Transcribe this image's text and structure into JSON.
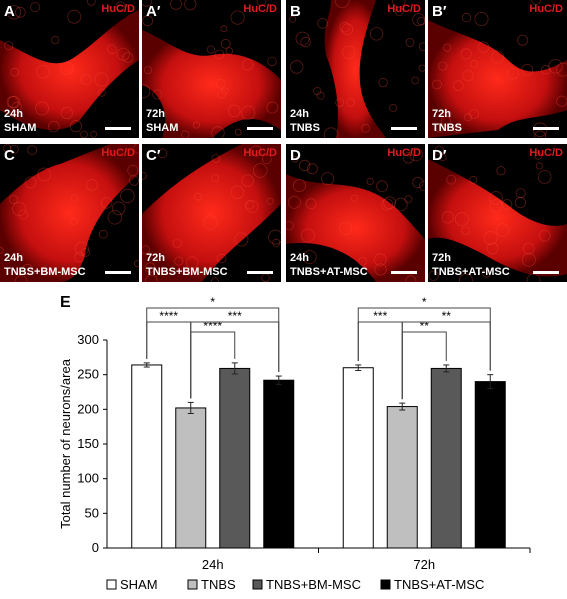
{
  "panels": [
    {
      "label": "A",
      "stain": "HuC/D",
      "time": "24h",
      "condition": "SHAM"
    },
    {
      "label": "A′",
      "stain": "HuC/D",
      "time": "72h",
      "condition": "SHAM"
    },
    {
      "label": "B",
      "stain": "HuC/D",
      "time": "24h",
      "condition": "TNBS"
    },
    {
      "label": "B′",
      "stain": "HuC/D",
      "time": "72h",
      "condition": "TNBS"
    },
    {
      "label": "C",
      "stain": "HuC/D",
      "time": "24h",
      "condition": "TNBS+BM-MSC"
    },
    {
      "label": "C′",
      "stain": "HuC/D",
      "time": "72h",
      "condition": "TNBS+BM-MSC"
    },
    {
      "label": "D",
      "stain": "HuC/D",
      "time": "24h",
      "condition": "TNBS+AT-MSC"
    },
    {
      "label": "D′",
      "stain": "HuC/D",
      "time": "72h",
      "condition": "TNBS+AT-MSC"
    }
  ],
  "colors": {
    "stain_red": "#e11b1b",
    "series": [
      "#ffffff",
      "#bfbfbf",
      "#595959",
      "#000000"
    ]
  },
  "chart_data": {
    "panel_label": "E",
    "type": "bar",
    "categories": [
      "24h",
      "72h"
    ],
    "ylabel": "Total number of neurons/area",
    "xlabel": "",
    "ylim": [
      0,
      300
    ],
    "yticks": [
      0,
      50,
      100,
      150,
      200,
      250,
      300
    ],
    "grid": false,
    "legend_position": "bottom",
    "series": [
      {
        "name": "SHAM",
        "values": [
          264,
          260
        ],
        "errors": [
          3,
          4
        ]
      },
      {
        "name": "TNBS",
        "values": [
          202,
          204
        ],
        "errors": [
          8,
          5
        ]
      },
      {
        "name": "TNBS+BM-MSC",
        "values": [
          259,
          259
        ],
        "errors": [
          8,
          5
        ]
      },
      {
        "name": "TNBS+AT-MSC",
        "values": [
          242,
          240
        ],
        "errors": [
          6,
          10
        ]
      }
    ],
    "significance": [
      {
        "group": "24h",
        "from": "SHAM",
        "to": "TNBS",
        "label": "****",
        "level": 1
      },
      {
        "group": "24h",
        "from": "TNBS",
        "to": "TNBS+BM-MSC",
        "label": "****",
        "level": 2
      },
      {
        "group": "24h",
        "from": "TNBS",
        "to": "TNBS+AT-MSC",
        "label": "***",
        "level": 3
      },
      {
        "group": "24h",
        "from": "SHAM",
        "to": "TNBS+AT-MSC",
        "label": "*",
        "level": 4
      },
      {
        "group": "72h",
        "from": "SHAM",
        "to": "TNBS",
        "label": "***",
        "level": 1
      },
      {
        "group": "72h",
        "from": "TNBS",
        "to": "TNBS+BM-MSC",
        "label": "**",
        "level": 2
      },
      {
        "group": "72h",
        "from": "TNBS",
        "to": "TNBS+AT-MSC",
        "label": "**",
        "level": 3
      },
      {
        "group": "72h",
        "from": "SHAM",
        "to": "TNBS+AT-MSC",
        "label": "*",
        "level": 4
      }
    ]
  }
}
